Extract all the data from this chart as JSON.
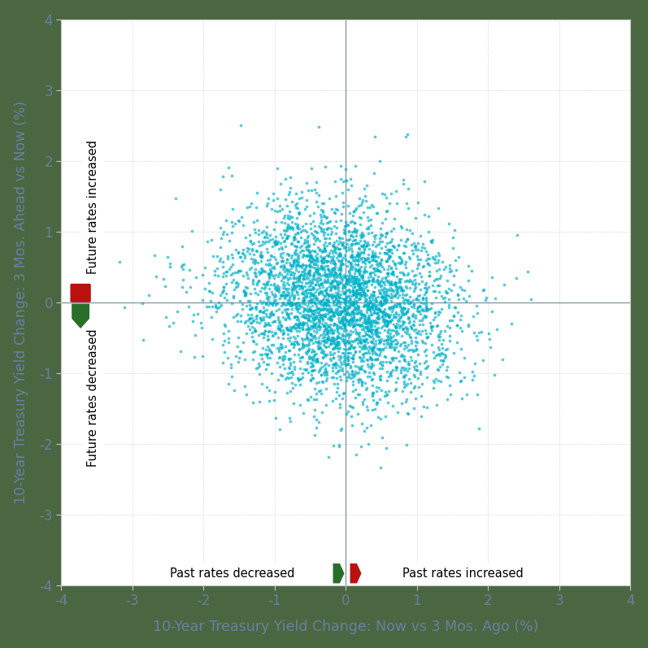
{
  "xlabel": "10-Year Treasury Yield Change: Now vs 3 Mos. Ago (%)",
  "ylabel": "10-Year Treasury Yield Change: 3 Mos. Ahead vs Now (%)",
  "xlim": [
    -4,
    4
  ],
  "ylim": [
    -4,
    4
  ],
  "xticks": [
    -4,
    -3,
    -2,
    -1,
    0,
    1,
    2,
    3,
    4
  ],
  "yticks": [
    -4,
    -3,
    -2,
    -1,
    0,
    1,
    2,
    3,
    4
  ],
  "dot_color": "#00B0C8",
  "dot_alpha": 0.65,
  "dot_size": 7,
  "n_points": 3500,
  "random_seed": 42,
  "bg_color": "#4A6741",
  "plot_bg_color": "#FFFFFF",
  "grid_color": "#C8C8C8",
  "axis_label_color": "#6B7FA3",
  "tick_color": "#6B7FA3",
  "future_increased_text": "Future rates increased",
  "future_decreased_text": "Future rates decreased",
  "past_decreased_text": "Past rates decreased",
  "past_increased_text": "Past rates increased",
  "legend_green_color": "#2A6E2A",
  "legend_red_color": "#BB1111",
  "zero_line_color": "#8899AA",
  "spine_color": "#C8C8C8"
}
